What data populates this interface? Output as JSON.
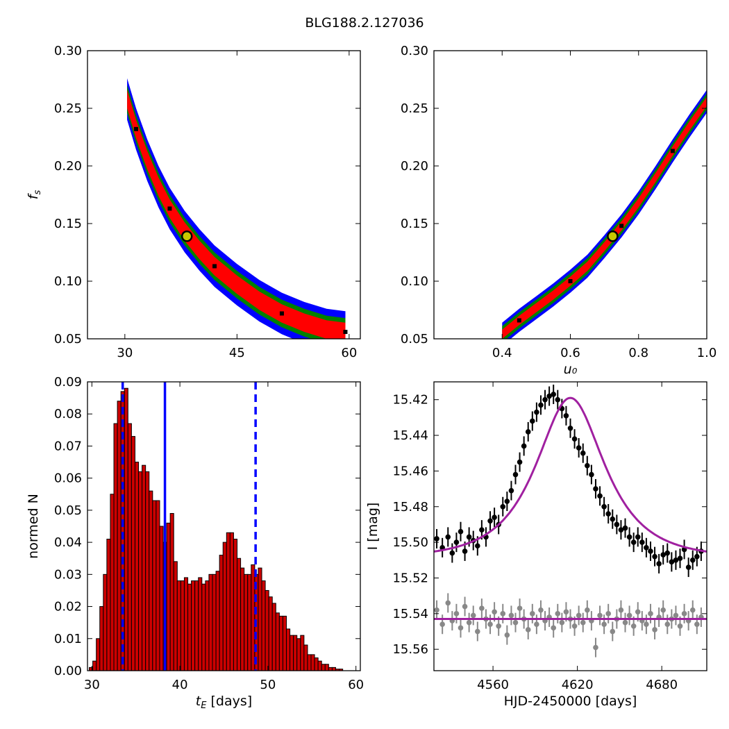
{
  "figure": {
    "title": "BLG188.2.127036"
  },
  "colors": {
    "contour_outer": "#0000ff",
    "contour_mid": "#008000",
    "contour_inner": "#ff0000",
    "best_fit_marker": "#c8c800",
    "histogram_fill": "#cc0000",
    "vline": "#0000ff",
    "model_curve": "#a020a0",
    "data_black": "#000000",
    "residual_grey": "#888888"
  },
  "chart_data": [
    {
      "type": "heatmap",
      "panel": "top-left",
      "xlabel": "",
      "ylabel": "f_s",
      "xlim": [
        25,
        61.5
      ],
      "ylim": [
        0.05,
        0.3
      ],
      "xticks": [
        "30",
        "45",
        "60"
      ],
      "yticks": [
        "0.05",
        "0.10",
        "0.15",
        "0.20",
        "0.25",
        "0.30"
      ],
      "contour_ridge": [
        [
          30.3,
          0.258
        ],
        [
          31.5,
          0.232
        ],
        [
          33,
          0.205
        ],
        [
          34.5,
          0.182
        ],
        [
          36,
          0.163
        ],
        [
          38,
          0.143
        ],
        [
          40,
          0.127
        ],
        [
          42,
          0.113
        ],
        [
          45,
          0.097
        ],
        [
          48,
          0.083
        ],
        [
          51,
          0.072
        ],
        [
          54,
          0.064
        ],
        [
          57,
          0.058
        ],
        [
          59.5,
          0.056
        ]
      ],
      "contour_widths_fs": [
        0.018,
        0.012,
        0.008
      ],
      "best_fit": {
        "x": 38.3,
        "y": 0.139
      },
      "grid": false
    },
    {
      "type": "heatmap",
      "panel": "top-right",
      "xlabel": "u_0",
      "ylabel": "",
      "xlim": [
        0.2,
        1.0
      ],
      "ylim": [
        0.05,
        0.3
      ],
      "xticks": [
        "0.4",
        "0.6",
        "0.8",
        "1.0"
      ],
      "yticks": [
        "0.05",
        "0.10",
        "0.15",
        "0.20",
        "0.25",
        "0.30"
      ],
      "contour_ridge": [
        [
          0.4,
          0.054
        ],
        [
          0.45,
          0.066
        ],
        [
          0.5,
          0.077
        ],
        [
          0.55,
          0.088
        ],
        [
          0.6,
          0.1
        ],
        [
          0.65,
          0.113
        ],
        [
          0.7,
          0.13
        ],
        [
          0.75,
          0.148
        ],
        [
          0.8,
          0.168
        ],
        [
          0.85,
          0.19
        ],
        [
          0.9,
          0.213
        ],
        [
          0.95,
          0.235
        ],
        [
          1.0,
          0.256
        ]
      ],
      "contour_widths_fs": [
        0.01,
        0.007,
        0.004
      ],
      "best_fit": {
        "x": 0.724,
        "y": 0.139
      },
      "grid": false
    },
    {
      "type": "bar",
      "panel": "bottom-left",
      "xlabel": "t_E [days]",
      "ylabel": "normed N",
      "xlim": [
        29.5,
        60.5
      ],
      "ylim": [
        0,
        0.09
      ],
      "xticks": [
        "30",
        "40",
        "50",
        "60"
      ],
      "yticks": [
        "0.00",
        "0.01",
        "0.02",
        "0.03",
        "0.04",
        "0.05",
        "0.06",
        "0.07",
        "0.08",
        "0.09"
      ],
      "bin_start": 29.7,
      "bin_width": 0.4,
      "values": [
        0.001,
        0.003,
        0.01,
        0.02,
        0.03,
        0.041,
        0.055,
        0.077,
        0.084,
        0.087,
        0.088,
        0.077,
        0.073,
        0.065,
        0.062,
        0.064,
        0.062,
        0.056,
        0.053,
        0.053,
        0.045,
        0.04,
        0.046,
        0.049,
        0.034,
        0.028,
        0.028,
        0.029,
        0.027,
        0.028,
        0.028,
        0.029,
        0.027,
        0.028,
        0.03,
        0.03,
        0.031,
        0.036,
        0.04,
        0.043,
        0.043,
        0.041,
        0.035,
        0.032,
        0.03,
        0.03,
        0.033,
        0.03,
        0.032,
        0.028,
        0.025,
        0.023,
        0.021,
        0.018,
        0.017,
        0.017,
        0.013,
        0.011,
        0.011,
        0.01,
        0.011,
        0.008,
        0.005,
        0.005,
        0.004,
        0.003,
        0.002,
        0.002,
        0.001,
        0.001,
        0.0005,
        0.0005
      ],
      "vlines": [
        {
          "x": 38.3,
          "style": "solid"
        },
        {
          "x": 33.5,
          "style": "dashed"
        },
        {
          "x": 48.6,
          "style": "dashed"
        }
      ],
      "grid": false
    },
    {
      "type": "scatter",
      "panel": "bottom-right",
      "xlabel": "HJD-2450000 [days]",
      "ylabel": "I [mag]",
      "xlim": [
        4518,
        4712
      ],
      "ylim": [
        15.572,
        15.41
      ],
      "y_inverted": true,
      "xticks": [
        "4560",
        "4620",
        "4680"
      ],
      "yticks": [
        "15.42",
        "15.44",
        "15.46",
        "15.48",
        "15.50",
        "15.52",
        "15.54",
        "15.56"
      ],
      "model": {
        "peak_x": 4615,
        "baseline": 15.509,
        "peak": 15.419,
        "tE": 38.3,
        "u0": 0.724,
        "fs": 0.139
      },
      "residual_baseline": 15.543,
      "series": [
        {
          "name": "",
          "role": "photometry",
          "x": [
            4520,
            4524,
            4528,
            4531,
            4534,
            4537,
            4540,
            4543,
            4546,
            4549,
            4552,
            4555,
            4558,
            4561,
            4564,
            4567,
            4570,
            4573,
            4576,
            4579,
            4582,
            4585,
            4588,
            4591,
            4594,
            4597,
            4600,
            4603,
            4606,
            4609,
            4612,
            4615,
            4618,
            4621,
            4624,
            4627,
            4630,
            4633,
            4636,
            4639,
            4642,
            4645,
            4648,
            4651,
            4654,
            4657,
            4660,
            4663,
            4666,
            4669,
            4672,
            4675,
            4678,
            4681,
            4684,
            4687,
            4690,
            4693,
            4696,
            4699,
            4702,
            4705,
            4708
          ],
          "y": [
            15.498,
            15.503,
            15.497,
            15.506,
            15.5,
            15.494,
            15.505,
            15.497,
            15.499,
            15.502,
            15.493,
            15.497,
            15.488,
            15.486,
            15.49,
            15.48,
            15.477,
            15.471,
            15.462,
            15.455,
            15.446,
            15.438,
            15.432,
            15.427,
            15.423,
            15.42,
            15.418,
            15.417,
            15.42,
            15.425,
            15.429,
            15.436,
            15.442,
            15.447,
            15.45,
            15.457,
            15.462,
            15.47,
            15.474,
            15.48,
            15.484,
            15.487,
            15.49,
            15.493,
            15.492,
            15.497,
            15.5,
            15.497,
            15.5,
            15.503,
            15.505,
            15.508,
            15.512,
            15.507,
            15.506,
            15.511,
            15.51,
            15.509,
            15.504,
            15.514,
            15.51,
            15.508,
            15.505
          ]
        },
        {
          "name": "",
          "role": "residuals",
          "x": [
            4520,
            4524,
            4528,
            4531,
            4534,
            4537,
            4540,
            4543,
            4546,
            4549,
            4552,
            4555,
            4558,
            4561,
            4564,
            4567,
            4570,
            4573,
            4576,
            4579,
            4582,
            4585,
            4588,
            4591,
            4594,
            4597,
            4600,
            4603,
            4606,
            4609,
            4612,
            4615,
            4618,
            4621,
            4624,
            4627,
            4630,
            4633,
            4636,
            4639,
            4642,
            4645,
            4648,
            4651,
            4654,
            4657,
            4660,
            4663,
            4666,
            4669,
            4672,
            4675,
            4678,
            4681,
            4684,
            4687,
            4690,
            4693,
            4696,
            4699,
            4702,
            4705,
            4708
          ],
          "y": [
            15.538,
            15.546,
            15.534,
            15.544,
            15.54,
            15.548,
            15.536,
            15.545,
            15.541,
            15.55,
            15.537,
            15.543,
            15.546,
            15.539,
            15.547,
            15.54,
            15.552,
            15.541,
            15.545,
            15.537,
            15.543,
            15.549,
            15.54,
            15.546,
            15.538,
            15.544,
            15.542,
            15.548,
            15.54,
            15.545,
            15.539,
            15.543,
            15.547,
            15.541,
            15.545,
            15.538,
            15.544,
            15.559,
            15.541,
            15.546,
            15.54,
            15.55,
            15.543,
            15.538,
            15.545,
            15.541,
            15.547,
            15.539,
            15.544,
            15.546,
            15.54,
            15.549,
            15.542,
            15.538,
            15.546,
            15.543,
            15.541,
            15.547,
            15.54,
            15.544,
            15.538,
            15.546,
            15.542
          ]
        }
      ],
      "grid": false
    }
  ]
}
